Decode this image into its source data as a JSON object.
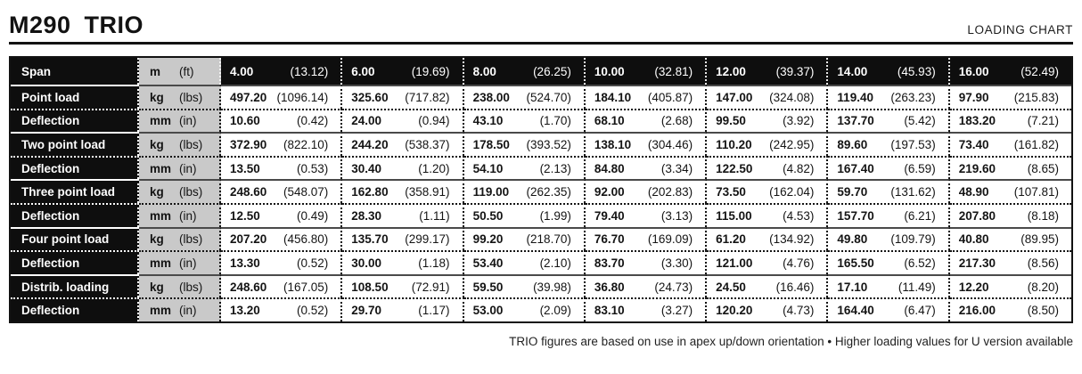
{
  "header": {
    "model": "M290",
    "variant": "TRIO",
    "chart_label": "LOADING CHART"
  },
  "footer": {
    "note": "TRIO figures are based on use in apex up/down orientation • Higher loading values for U version available"
  },
  "table": {
    "rows": [
      {
        "kind": "span",
        "label": "Span",
        "unit": "m",
        "unit_alt": "(ft)",
        "cells": [
          [
            "4.00",
            "(13.12)"
          ],
          [
            "6.00",
            "(19.69)"
          ],
          [
            "8.00",
            "(26.25)"
          ],
          [
            "10.00",
            "(32.81)"
          ],
          [
            "12.00",
            "(39.37)"
          ],
          [
            "14.00",
            "(45.93)"
          ],
          [
            "16.00",
            "(52.49)"
          ]
        ]
      },
      {
        "kind": "load",
        "label": "Point load",
        "unit": "kg",
        "unit_alt": "(lbs)",
        "cells": [
          [
            "497.20",
            "(1096.14)"
          ],
          [
            "325.60",
            "(717.82)"
          ],
          [
            "238.00",
            "(524.70)"
          ],
          [
            "184.10",
            "(405.87)"
          ],
          [
            "147.00",
            "(324.08)"
          ],
          [
            "119.40",
            "(263.23)"
          ],
          [
            "97.90",
            "(215.83)"
          ]
        ]
      },
      {
        "kind": "defl",
        "label": "Deflection",
        "unit": "mm",
        "unit_alt": "(in)",
        "cells": [
          [
            "10.60",
            "(0.42)"
          ],
          [
            "24.00",
            "(0.94)"
          ],
          [
            "43.10",
            "(1.70)"
          ],
          [
            "68.10",
            "(2.68)"
          ],
          [
            "99.50",
            "(3.92)"
          ],
          [
            "137.70",
            "(5.42)"
          ],
          [
            "183.20",
            "(7.21)"
          ]
        ]
      },
      {
        "kind": "load",
        "label": "Two point load",
        "unit": "kg",
        "unit_alt": "(lbs)",
        "cells": [
          [
            "372.90",
            "(822.10)"
          ],
          [
            "244.20",
            "(538.37)"
          ],
          [
            "178.50",
            "(393.52)"
          ],
          [
            "138.10",
            "(304.46)"
          ],
          [
            "110.20",
            "(242.95)"
          ],
          [
            "89.60",
            "(197.53)"
          ],
          [
            "73.40",
            "(161.82)"
          ]
        ]
      },
      {
        "kind": "defl",
        "label": "Deflection",
        "unit": "mm",
        "unit_alt": "(in)",
        "cells": [
          [
            "13.50",
            "(0.53)"
          ],
          [
            "30.40",
            "(1.20)"
          ],
          [
            "54.10",
            "(2.13)"
          ],
          [
            "84.80",
            "(3.34)"
          ],
          [
            "122.50",
            "(4.82)"
          ],
          [
            "167.40",
            "(6.59)"
          ],
          [
            "219.60",
            "(8.65)"
          ]
        ]
      },
      {
        "kind": "load",
        "label": "Three point load",
        "unit": "kg",
        "unit_alt": "(lbs)",
        "cells": [
          [
            "248.60",
            "(548.07)"
          ],
          [
            "162.80",
            "(358.91)"
          ],
          [
            "119.00",
            "(262.35)"
          ],
          [
            "92.00",
            "(202.83)"
          ],
          [
            "73.50",
            "(162.04)"
          ],
          [
            "59.70",
            "(131.62)"
          ],
          [
            "48.90",
            "(107.81)"
          ]
        ]
      },
      {
        "kind": "defl",
        "label": "Deflection",
        "unit": "mm",
        "unit_alt": "(in)",
        "cells": [
          [
            "12.50",
            "(0.49)"
          ],
          [
            "28.30",
            "(1.11)"
          ],
          [
            "50.50",
            "(1.99)"
          ],
          [
            "79.40",
            "(3.13)"
          ],
          [
            "115.00",
            "(4.53)"
          ],
          [
            "157.70",
            "(6.21)"
          ],
          [
            "207.80",
            "(8.18)"
          ]
        ]
      },
      {
        "kind": "load",
        "label": "Four point load",
        "unit": "kg",
        "unit_alt": "(lbs)",
        "cells": [
          [
            "207.20",
            "(456.80)"
          ],
          [
            "135.70",
            "(299.17)"
          ],
          [
            "99.20",
            "(218.70)"
          ],
          [
            "76.70",
            "(169.09)"
          ],
          [
            "61.20",
            "(134.92)"
          ],
          [
            "49.80",
            "(109.79)"
          ],
          [
            "40.80",
            "(89.95)"
          ]
        ]
      },
      {
        "kind": "defl",
        "label": "Deflection",
        "unit": "mm",
        "unit_alt": "(in)",
        "cells": [
          [
            "13.30",
            "(0.52)"
          ],
          [
            "30.00",
            "(1.18)"
          ],
          [
            "53.40",
            "(2.10)"
          ],
          [
            "83.70",
            "(3.30)"
          ],
          [
            "121.00",
            "(4.76)"
          ],
          [
            "165.50",
            "(6.52)"
          ],
          [
            "217.30",
            "(8.56)"
          ]
        ]
      },
      {
        "kind": "load",
        "label": "Distrib. loading",
        "unit": "kg",
        "unit_alt": "(lbs)",
        "cells": [
          [
            "248.60",
            "(167.05)"
          ],
          [
            "108.50",
            "(72.91)"
          ],
          [
            "59.50",
            "(39.98)"
          ],
          [
            "36.80",
            "(24.73)"
          ],
          [
            "24.50",
            "(16.46)"
          ],
          [
            "17.10",
            "(11.49)"
          ],
          [
            "12.20",
            "(8.20)"
          ]
        ]
      },
      {
        "kind": "defl",
        "label": "Deflection",
        "unit": "mm",
        "unit_alt": "(in)",
        "cells": [
          [
            "13.20",
            "(0.52)"
          ],
          [
            "29.70",
            "(1.17)"
          ],
          [
            "53.00",
            "(2.09)"
          ],
          [
            "83.10",
            "(3.27)"
          ],
          [
            "120.20",
            "(4.73)"
          ],
          [
            "164.40",
            "(6.47)"
          ],
          [
            "216.00",
            "(8.50)"
          ]
        ]
      }
    ]
  }
}
